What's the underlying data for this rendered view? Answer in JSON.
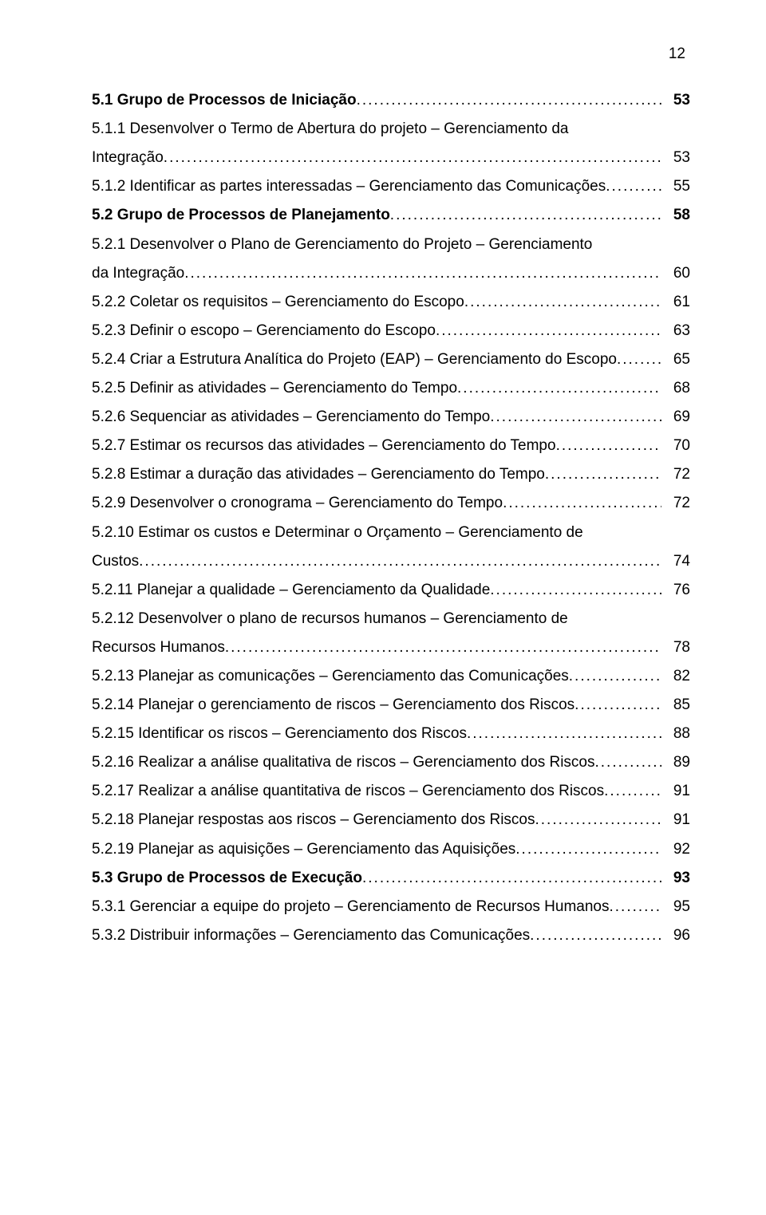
{
  "page_number": "12",
  "font": {
    "family": "Arial",
    "size_pt": 14,
    "color": "#000000",
    "line_height": 1.9
  },
  "background_color": "#ffffff",
  "entries": [
    {
      "label": "5.1 Grupo de Processos de Iniciação",
      "page": "53",
      "bold": true,
      "wrap": false
    },
    {
      "label": "5.1.1 Desenvolver  o  Termo  de  Abertura  do  projeto  –  Gerenciamento da",
      "cont": "Integração",
      "page": "53",
      "bold": false,
      "wrap": true
    },
    {
      "label": "5.1.2 Identificar as partes interessadas – Gerenciamento das Comunicações",
      "page": "55",
      "bold": false,
      "wrap": false
    },
    {
      "label": "5.2 Grupo de Processos de Planejamento",
      "page": "58",
      "bold": true,
      "wrap": false
    },
    {
      "label": "5.2.1 Desenvolver   o   Plano  de  Gerenciamento  do  Projeto  –  Gerenciamento",
      "cont": "da Integração",
      "page": "60",
      "bold": false,
      "wrap": true
    },
    {
      "label": "5.2.2 Coletar os requisitos – Gerenciamento do Escopo",
      "page": "61",
      "bold": false,
      "wrap": false
    },
    {
      "label": "5.2.3 Definir o escopo – Gerenciamento do Escopo",
      "page": "63",
      "bold": false,
      "wrap": false
    },
    {
      "label": "5.2.4 Criar a Estrutura Analítica do Projeto (EAP) – Gerenciamento do Escopo",
      "page": "65",
      "bold": false,
      "wrap": false
    },
    {
      "label": "5.2.5 Definir as atividades – Gerenciamento do Tempo",
      "page": "68",
      "bold": false,
      "wrap": false
    },
    {
      "label": "5.2.6 Sequenciar as atividades – Gerenciamento do Tempo",
      "page": "69",
      "bold": false,
      "wrap": false
    },
    {
      "label": "5.2.7 Estimar os recursos das atividades – Gerenciamento do Tempo",
      "page": "70",
      "bold": false,
      "wrap": false
    },
    {
      "label": "5.2.8 Estimar a duração das atividades – Gerenciamento do Tempo",
      "page": "72",
      "bold": false,
      "wrap": false
    },
    {
      "label": "5.2.9 Desenvolver o cronograma – Gerenciamento do Tempo",
      "page": "72",
      "bold": false,
      "wrap": false
    },
    {
      "label": "5.2.10 Estimar  os  custos  e  Determinar  o  Orçamento  –  Gerenciamento de",
      "cont": "Custos",
      "page": "74",
      "bold": false,
      "wrap": true
    },
    {
      "label": "5.2.11 Planejar a qualidade – Gerenciamento da Qualidade",
      "page": "76",
      "bold": false,
      "wrap": false
    },
    {
      "label": "5.2.12 Desenvolver   o   plano   de   recursos  humanos  –  Gerenciamento  de",
      "cont": "Recursos Humanos",
      "page": "78",
      "bold": false,
      "wrap": true
    },
    {
      "label": "5.2.13 Planejar as comunicações – Gerenciamento das Comunicações",
      "page": "82",
      "bold": false,
      "wrap": false
    },
    {
      "label": "5.2.14 Planejar o gerenciamento de riscos – Gerenciamento dos Riscos",
      "page": "85",
      "bold": false,
      "wrap": false
    },
    {
      "label": "5.2.15 Identificar os riscos – Gerenciamento dos Riscos",
      "page": "88",
      "bold": false,
      "wrap": false
    },
    {
      "label": "5.2.16 Realizar a análise qualitativa de riscos – Gerenciamento dos Riscos",
      "page": "89",
      "bold": false,
      "wrap": false
    },
    {
      "label": "5.2.17 Realizar a análise quantitativa de riscos – Gerenciamento dos Riscos",
      "page": "91",
      "bold": false,
      "wrap": false
    },
    {
      "label": "5.2.18 Planejar respostas aos riscos – Gerenciamento dos Riscos",
      "page": "91",
      "bold": false,
      "wrap": false
    },
    {
      "label": "5.2.19 Planejar as aquisições – Gerenciamento das Aquisições",
      "page": "92",
      "bold": false,
      "wrap": false
    },
    {
      "label": "5.3 Grupo de Processos de Execução",
      "page": "93",
      "bold": true,
      "wrap": false
    },
    {
      "label": "5.3.1 Gerenciar a equipe do projeto – Gerenciamento de Recursos Humanos",
      "page": "95",
      "bold": false,
      "wrap": false
    },
    {
      "label": "5.3.2 Distribuir informações – Gerenciamento das Comunicações",
      "page": "96",
      "bold": false,
      "wrap": false
    }
  ]
}
